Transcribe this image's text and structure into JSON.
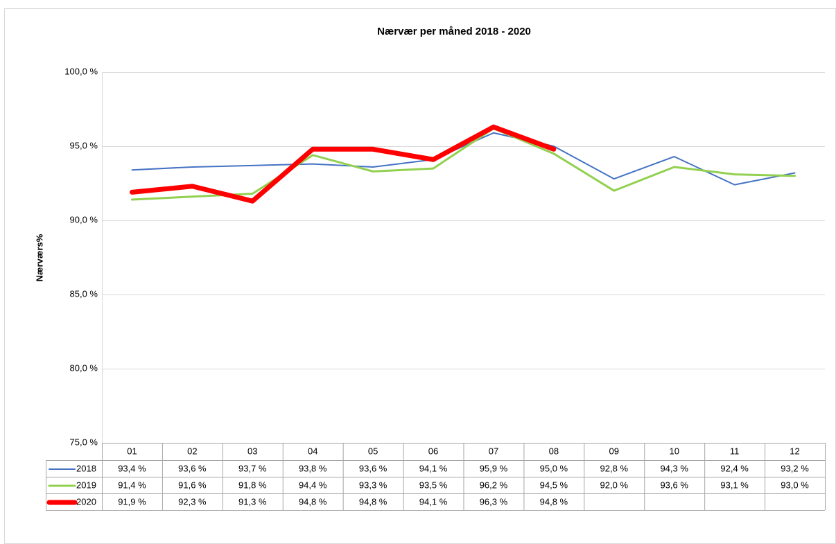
{
  "chart_data": {
    "type": "line",
    "title": "Nærvær per måned 2018 - 2020",
    "y_label": "Nærværs%",
    "categories": [
      "01",
      "02",
      "03",
      "04",
      "05",
      "06",
      "07",
      "08",
      "09",
      "10",
      "11",
      "12"
    ],
    "series": [
      {
        "name": "2018",
        "color": "#4472c4",
        "width": 2,
        "values": [
          93.4,
          93.6,
          93.7,
          93.8,
          93.6,
          94.1,
          95.9,
          95.0,
          92.8,
          94.3,
          92.4,
          93.2
        ],
        "value_labels": [
          "93,4 %",
          "93,6 %",
          "93,7 %",
          "93,8 %",
          "93,6 %",
          "94,1 %",
          "95,9 %",
          "95,0 %",
          "92,8 %",
          "94,3 %",
          "92,4 %",
          "93,2 %"
        ]
      },
      {
        "name": "2019",
        "color": "#92d050",
        "width": 3,
        "values": [
          91.4,
          91.6,
          91.8,
          94.4,
          93.3,
          93.5,
          96.2,
          94.5,
          92.0,
          93.6,
          93.1,
          93.0
        ],
        "value_labels": [
          "91,4 %",
          "91,6 %",
          "91,8 %",
          "94,4 %",
          "93,3 %",
          "93,5 %",
          "96,2 %",
          "94,5 %",
          "92,0 %",
          "93,6 %",
          "93,1 %",
          "93,0 %"
        ]
      },
      {
        "name": "2020",
        "color": "#ff0000",
        "width": 7,
        "values": [
          91.9,
          92.3,
          91.3,
          94.8,
          94.8,
          94.1,
          96.3,
          94.8,
          null,
          null,
          null,
          null
        ],
        "value_labels": [
          "91,9 %",
          "92,3 %",
          "91,3 %",
          "94,8 %",
          "94,8 %",
          "94,1 %",
          "96,3 %",
          "94,8 %",
          null,
          null,
          null,
          null
        ]
      }
    ],
    "ylim": [
      75,
      100
    ],
    "yticks": [
      {
        "value": 75,
        "label": "75,0 %"
      },
      {
        "value": 80,
        "label": "80,0 %"
      },
      {
        "value": 85,
        "label": "85,0 %"
      },
      {
        "value": 90,
        "label": "90,0 %"
      },
      {
        "value": 95,
        "label": "95,0 %"
      },
      {
        "value": 100,
        "label": "100,0 %"
      }
    ],
    "grid": true,
    "data_table": true
  }
}
